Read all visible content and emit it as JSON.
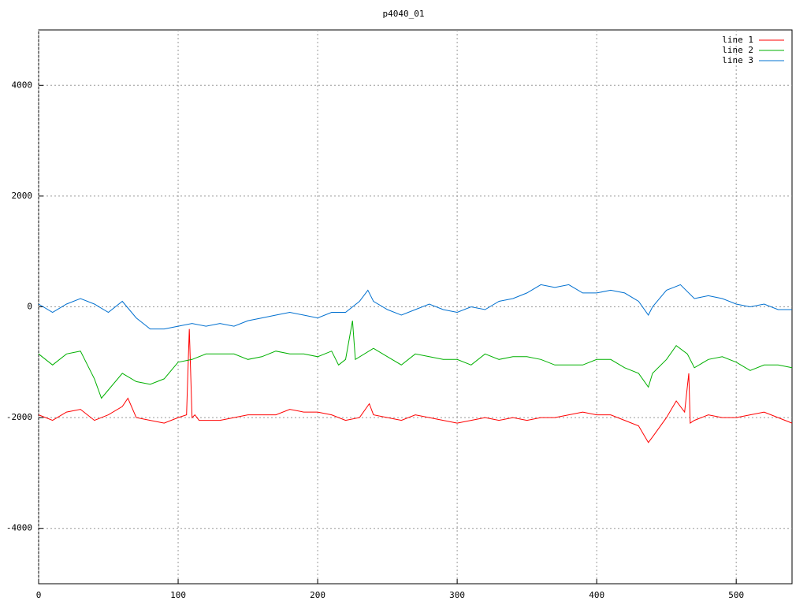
{
  "chart_data": {
    "type": "line",
    "title": "p4040_01",
    "xlim": [
      0,
      540
    ],
    "ylim": [
      -5000,
      5000
    ],
    "xticks": [
      0,
      100,
      200,
      300,
      400,
      500
    ],
    "yticks": [
      -4000,
      -2000,
      0,
      2000,
      4000
    ],
    "grid": true,
    "legend": "top-right",
    "series": [
      {
        "name": "line 1",
        "color": "#ff0000",
        "x": [
          0,
          10,
          20,
          30,
          40,
          50,
          60,
          64,
          70,
          80,
          90,
          100,
          106,
          108,
          110,
          112,
          115,
          120,
          130,
          140,
          150,
          160,
          170,
          180,
          190,
          200,
          210,
          220,
          230,
          237,
          240,
          250,
          260,
          270,
          280,
          290,
          300,
          310,
          320,
          330,
          340,
          350,
          360,
          370,
          380,
          390,
          400,
          410,
          420,
          430,
          437,
          440,
          450,
          457,
          463,
          466,
          467,
          470,
          480,
          490,
          500,
          510,
          520,
          530,
          540
        ],
        "values": [
          -1950,
          -2050,
          -1900,
          -1850,
          -2050,
          -1950,
          -1800,
          -1650,
          -2000,
          -2050,
          -2100,
          -2000,
          -1950,
          -400,
          -2000,
          -1950,
          -2050,
          -2050,
          -2050,
          -2000,
          -1950,
          -1950,
          -1950,
          -1850,
          -1900,
          -1900,
          -1950,
          -2050,
          -2000,
          -1750,
          -1950,
          -2000,
          -2050,
          -1950,
          -2000,
          -2050,
          -2100,
          -2050,
          -2000,
          -2050,
          -2000,
          -2050,
          -2000,
          -2000,
          -1950,
          -1900,
          -1950,
          -1950,
          -2050,
          -2150,
          -2450,
          -2350,
          -2000,
          -1700,
          -1900,
          -1200,
          -2100,
          -2050,
          -1950,
          -2000,
          -2000,
          -1950,
          -1900,
          -2000,
          -2100
        ]
      },
      {
        "name": "line 2",
        "color": "#00b000",
        "x": [
          0,
          10,
          20,
          30,
          40,
          45,
          50,
          60,
          70,
          80,
          90,
          100,
          110,
          120,
          130,
          140,
          150,
          160,
          170,
          180,
          190,
          200,
          210,
          215,
          220,
          225,
          227,
          240,
          250,
          260,
          270,
          280,
          290,
          300,
          310,
          320,
          330,
          340,
          350,
          360,
          370,
          380,
          390,
          400,
          410,
          420,
          430,
          437,
          440,
          450,
          457,
          465,
          470,
          480,
          490,
          500,
          510,
          520,
          530,
          540
        ],
        "values": [
          -850,
          -1050,
          -850,
          -800,
          -1300,
          -1650,
          -1500,
          -1200,
          -1350,
          -1400,
          -1300,
          -1000,
          -950,
          -850,
          -850,
          -850,
          -950,
          -900,
          -800,
          -850,
          -850,
          -900,
          -800,
          -1050,
          -950,
          -250,
          -950,
          -750,
          -900,
          -1050,
          -850,
          -900,
          -950,
          -950,
          -1050,
          -850,
          -950,
          -900,
          -900,
          -950,
          -1050,
          -1050,
          -1050,
          -950,
          -950,
          -1100,
          -1200,
          -1450,
          -1200,
          -950,
          -700,
          -850,
          -1100,
          -950,
          -900,
          -1000,
          -1150,
          -1050,
          -1050,
          -1100
        ]
      },
      {
        "name": "line 3",
        "color": "#0070d0",
        "x": [
          0,
          10,
          20,
          30,
          40,
          50,
          60,
          70,
          80,
          90,
          100,
          110,
          120,
          130,
          140,
          150,
          160,
          170,
          180,
          190,
          200,
          210,
          220,
          230,
          236,
          240,
          250,
          260,
          270,
          280,
          290,
          300,
          310,
          320,
          330,
          340,
          350,
          360,
          370,
          380,
          390,
          400,
          410,
          420,
          430,
          437,
          440,
          450,
          460,
          470,
          480,
          490,
          500,
          510,
          520,
          530,
          540
        ],
        "values": [
          50,
          -100,
          50,
          150,
          50,
          -100,
          100,
          -200,
          -400,
          -400,
          -350,
          -300,
          -350,
          -300,
          -350,
          -250,
          -200,
          -150,
          -100,
          -150,
          -200,
          -100,
          -100,
          100,
          300,
          100,
          -50,
          -150,
          -50,
          50,
          -50,
          -100,
          0,
          -50,
          100,
          150,
          250,
          400,
          350,
          400,
          250,
          250,
          300,
          250,
          100,
          -150,
          0,
          300,
          400,
          150,
          200,
          150,
          50,
          0,
          50,
          -50,
          -50
        ]
      }
    ]
  }
}
